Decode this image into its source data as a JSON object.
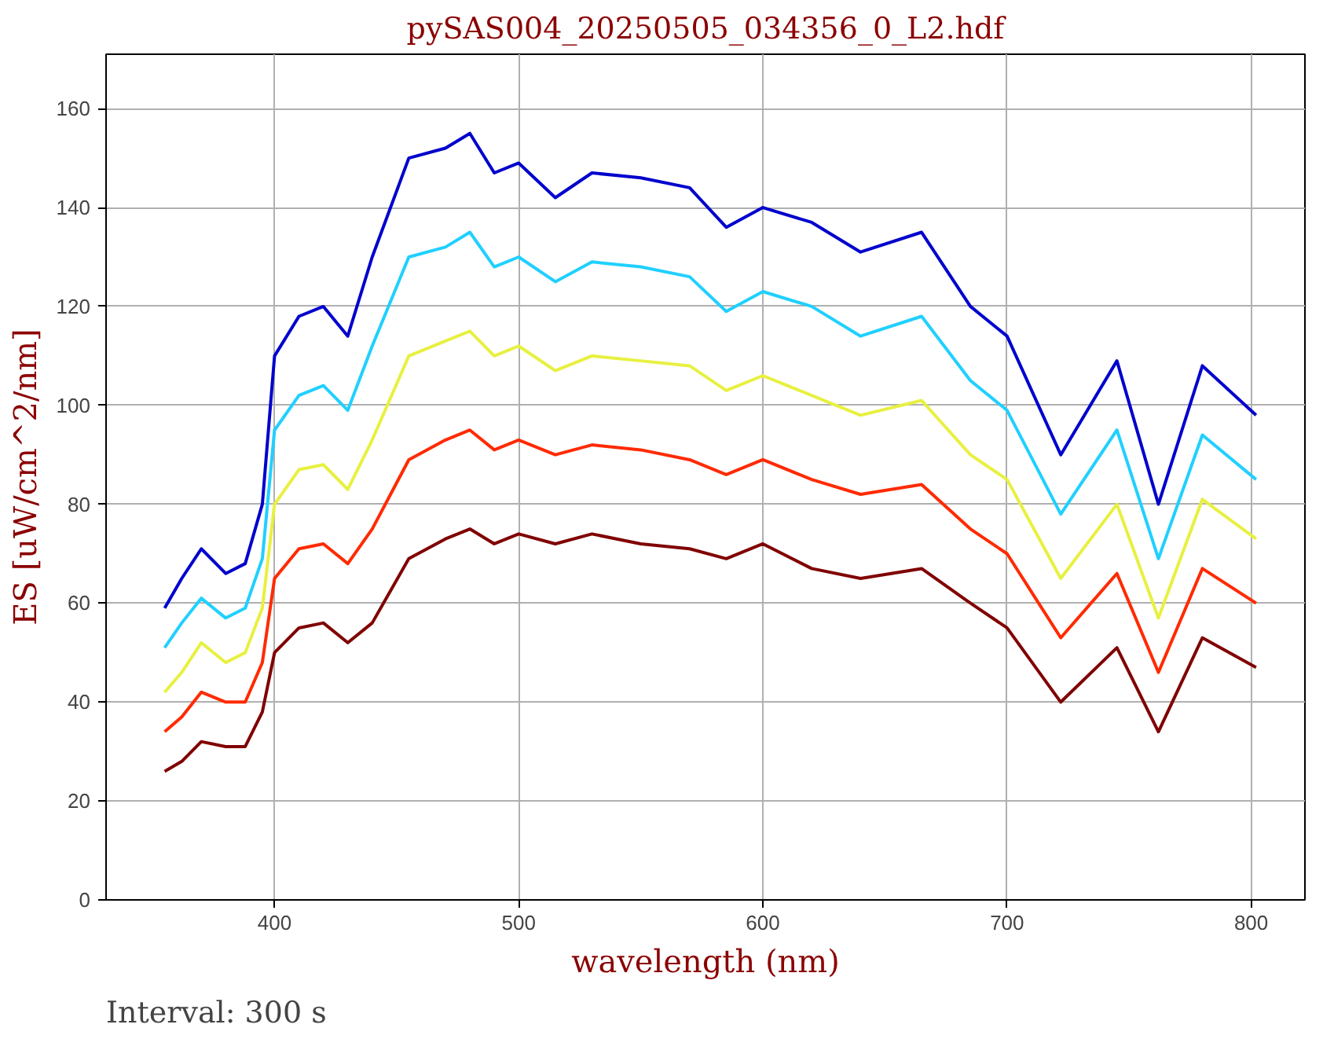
{
  "chart_data": {
    "type": "line",
    "title": "pySAS004_20250505_034356_0_L2.hdf",
    "xlabel": "wavelength (nm)",
    "ylabel": "ES [uW/cm^2/nm]",
    "annotations": [
      "Interval: 300 s"
    ],
    "x": [
      355,
      362,
      370,
      380,
      388,
      395,
      400,
      410,
      420,
      430,
      440,
      455,
      470,
      480,
      490,
      500,
      515,
      530,
      550,
      570,
      585,
      600,
      620,
      640,
      665,
      685,
      700,
      722,
      745,
      762,
      780,
      802
    ],
    "xlim": [
      331,
      822
    ],
    "ylim": [
      0,
      171
    ],
    "xticks": [
      400,
      500,
      600,
      700,
      800
    ],
    "yticks": [
      0,
      20,
      40,
      60,
      80,
      100,
      120,
      140,
      160
    ],
    "grid": true,
    "line_style": "solid",
    "marker": "none",
    "series": [
      {
        "color": "#800000",
        "values": [
          26,
          28,
          32,
          31,
          31,
          38,
          50,
          55,
          56,
          52,
          56,
          69,
          73,
          75,
          72,
          74,
          72,
          74,
          72,
          71,
          69,
          72,
          67,
          65,
          67,
          60,
          55,
          40,
          51,
          34,
          53,
          47
        ]
      },
      {
        "color": "#ff2a00",
        "values": [
          34,
          37,
          42,
          40,
          40,
          48,
          65,
          71,
          72,
          68,
          75,
          89,
          93,
          95,
          91,
          93,
          90,
          92,
          91,
          89,
          86,
          89,
          85,
          82,
          84,
          75,
          70,
          53,
          66,
          46,
          67,
          60
        ]
      },
      {
        "color": "#e8f040",
        "values": [
          42,
          46,
          52,
          48,
          50,
          59,
          80,
          87,
          88,
          83,
          93,
          110,
          113,
          115,
          110,
          112,
          107,
          110,
          109,
          108,
          103,
          106,
          102,
          98,
          101,
          90,
          85,
          65,
          80,
          57,
          81,
          73
        ]
      },
      {
        "color": "#20d0ff",
        "values": [
          51,
          56,
          61,
          57,
          59,
          69,
          95,
          102,
          104,
          99,
          112,
          130,
          132,
          135,
          128,
          130,
          125,
          129,
          128,
          126,
          119,
          123,
          120,
          114,
          118,
          105,
          99,
          78,
          95,
          69,
          94,
          85
        ]
      },
      {
        "color": "#0000cd",
        "values": [
          59,
          65,
          71,
          66,
          68,
          80,
          110,
          118,
          120,
          114,
          130,
          150,
          152,
          155,
          147,
          149,
          142,
          147,
          146,
          144,
          136,
          140,
          137,
          131,
          135,
          120,
          114,
          90,
          109,
          80,
          108,
          98
        ]
      }
    ]
  }
}
